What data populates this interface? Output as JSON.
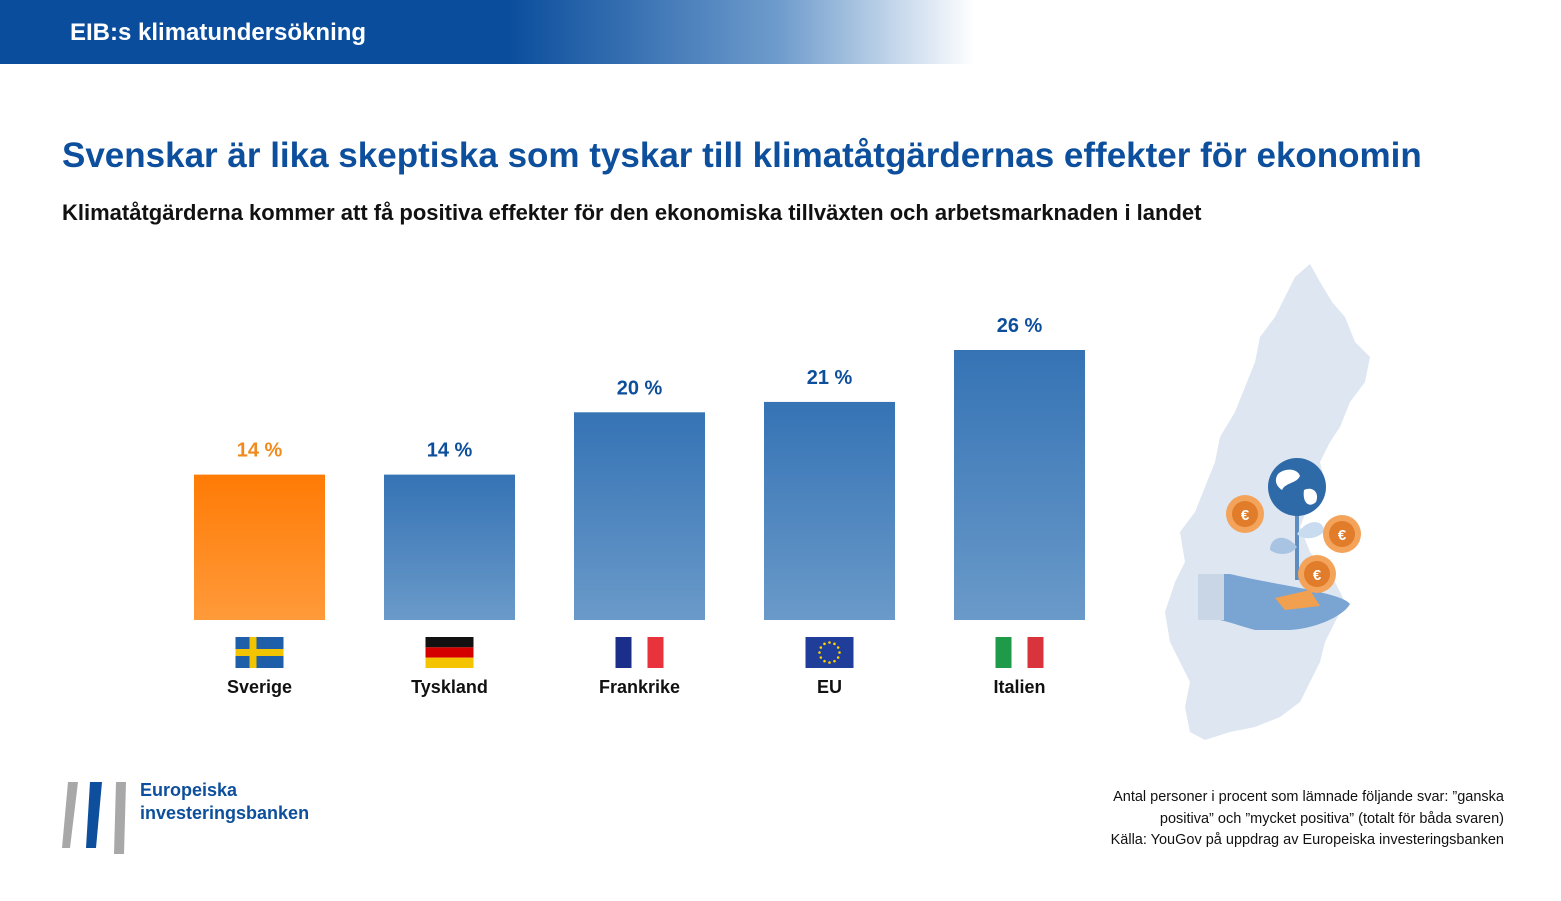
{
  "header": {
    "title": "EIB:s klimatundersökning"
  },
  "main_title": "Svenskar är lika skeptiska som tyskar till klimatåtgärdernas effekter för ekonomin",
  "subtitle": "Klimatåtgärderna kommer att få positiva effekter för den ekonomiska tillväxten och arbetsmarknaden i landet",
  "chart_data": {
    "type": "bar",
    "categories": [
      "Sverige",
      "Tyskland",
      "Frankrike",
      "EU",
      "Italien"
    ],
    "values": [
      14,
      14,
      20,
      21,
      26
    ],
    "value_labels": [
      "14 %",
      "14 %",
      "20 %",
      "21 %",
      "26 %"
    ],
    "highlight_index": 0,
    "colors": {
      "highlight": "#ff7f0e",
      "default": "#3b78b8",
      "label_default": "#0d4f9c",
      "label_highlight": "#f08a1c"
    },
    "flags": [
      "flag-sweden",
      "flag-germany",
      "flag-france",
      "flag-eu",
      "flag-italy"
    ],
    "ylim": [
      0,
      26
    ],
    "grid": false,
    "legend": "none"
  },
  "logo": {
    "line1": "Europeiska",
    "line2": "investeringsbanken"
  },
  "footnote": {
    "line1": "Antal personer i procent som lämnade följande svar: ”ganska",
    "line2": "positiva” och ”mycket positiva” (totalt för båda svaren)",
    "line3": "Källa: YouGov på uppdrag av Europeiska investeringsbanken"
  }
}
